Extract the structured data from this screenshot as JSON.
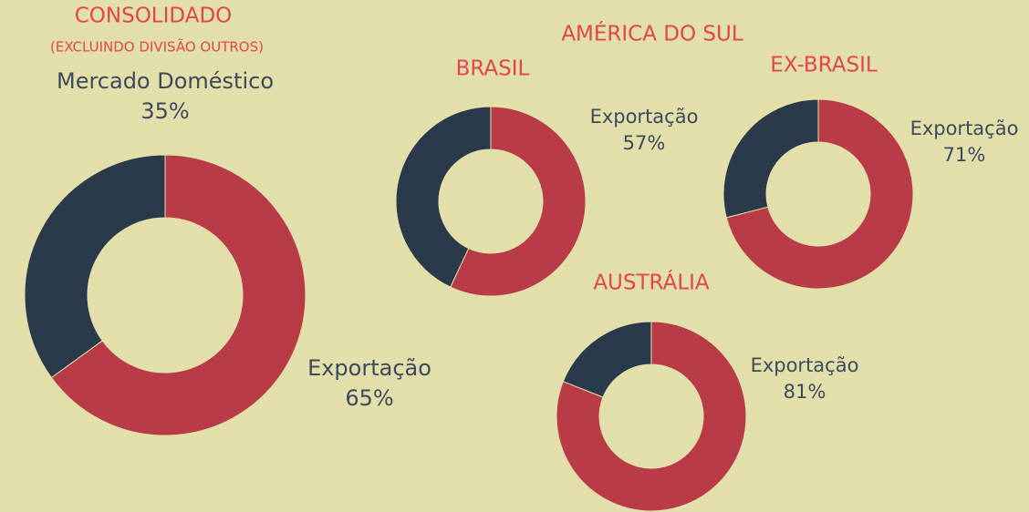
{
  "group_title": "AMÉRICA DO SUL",
  "chart_data": [
    {
      "type": "pie",
      "title": "CONSOLIDADO",
      "subtitle": "(EXCLUINDO DIVISÃO OUTROS)",
      "categories": [
        "Exportação",
        "Mercado Doméstico"
      ],
      "values": [
        65,
        35
      ],
      "value_labels": [
        "65%",
        "35%"
      ],
      "colors": [
        "#b93b48",
        "#2b3a4b"
      ]
    },
    {
      "type": "pie",
      "title": "BRASIL",
      "categories": [
        "Exportação",
        null
      ],
      "values": [
        57,
        43
      ],
      "value_labels": [
        "57%",
        null
      ],
      "colors": [
        "#b93b48",
        "#2b3a4b"
      ]
    },
    {
      "type": "pie",
      "title": "EX-BRASIL",
      "categories": [
        "Exportação",
        null
      ],
      "values": [
        71,
        29
      ],
      "value_labels": [
        "71%",
        null
      ],
      "colors": [
        "#b93b48",
        "#2b3a4b"
      ]
    },
    {
      "type": "pie",
      "title": "AUSTRÁLIA",
      "categories": [
        "Exportação",
        null
      ],
      "values": [
        81,
        19
      ],
      "value_labels": [
        "81%",
        null
      ],
      "colors": [
        "#b93b48",
        "#2b3a4b"
      ]
    }
  ]
}
